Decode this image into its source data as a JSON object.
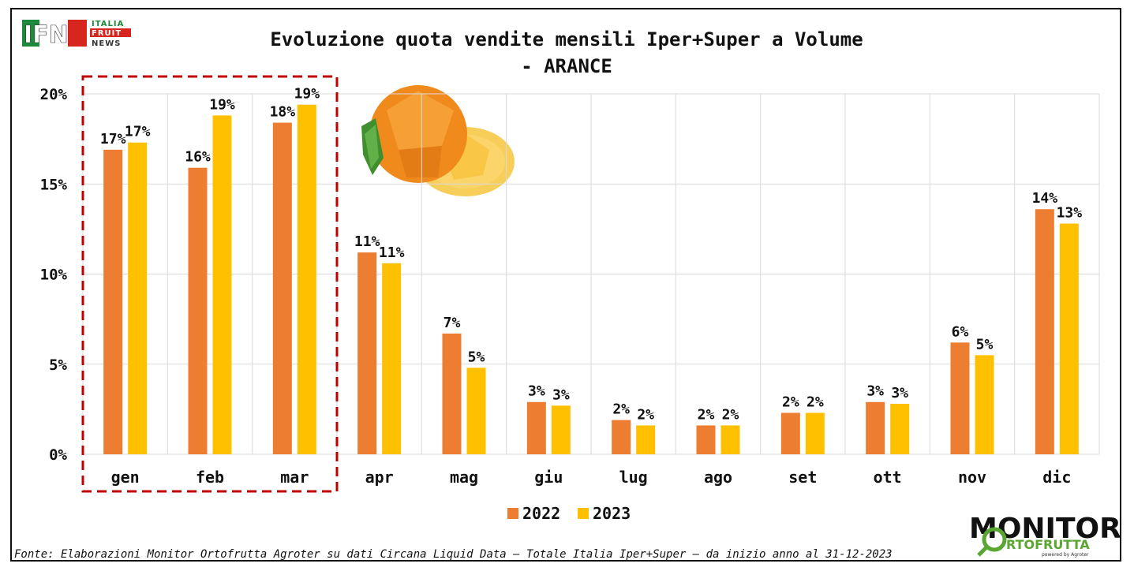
{
  "chart_data": {
    "type": "bar",
    "title_line1": "Evoluzione quota vendite mensili Iper+Super a Volume",
    "title_line2": "- ARANCE",
    "categories": [
      "gen",
      "feb",
      "mar",
      "apr",
      "mag",
      "giu",
      "lug",
      "ago",
      "set",
      "ott",
      "nov",
      "dic"
    ],
    "series": [
      {
        "name": "2022",
        "color": "#ED7D31",
        "values": [
          16.9,
          15.9,
          18.4,
          11.2,
          6.7,
          2.9,
          1.9,
          1.6,
          2.3,
          2.9,
          6.2,
          13.6
        ],
        "labels": [
          "17%",
          "16%",
          "18%",
          "11%",
          "7%",
          "3%",
          "2%",
          "2%",
          "2%",
          "3%",
          "6%",
          "14%"
        ]
      },
      {
        "name": "2023",
        "color": "#FFC000",
        "values": [
          17.3,
          18.8,
          19.4,
          10.6,
          4.8,
          2.7,
          1.6,
          1.6,
          2.3,
          2.8,
          5.5,
          12.8
        ],
        "labels": [
          "17%",
          "19%",
          "19%",
          "11%",
          "5%",
          "3%",
          "2%",
          "2%",
          "2%",
          "3%",
          "5%",
          "13%"
        ]
      }
    ],
    "ylim": [
      0,
      20
    ],
    "yticks": [
      "0%",
      "5%",
      "10%",
      "15%",
      "20%"
    ],
    "ytick_values": [
      0,
      5,
      10,
      15,
      20
    ],
    "grid": true,
    "legend": "bottom-center",
    "highlight_categories": [
      "gen",
      "feb",
      "mar"
    ]
  },
  "logo_ifn": {
    "letters": "IFN",
    "line1": "ITALIA",
    "line2": "FRUIT",
    "line3": "NEWS"
  },
  "logo_monitor": {
    "word1": "MONITOR",
    "word2": "RTOFRUTTA",
    "powered": "powered by Agroter"
  },
  "source": "Fonte: Elaborazioni Monitor Ortofrutta Agroter su dati Circana Liquid Data – Totale Italia Iper+Super –  da inizio anno al 31-12-2023",
  "colors": {
    "highlight_box": "#C00000",
    "grid": "#D9D9D9",
    "brand_red": "#D7261E",
    "brand_green": "#5BA532"
  }
}
